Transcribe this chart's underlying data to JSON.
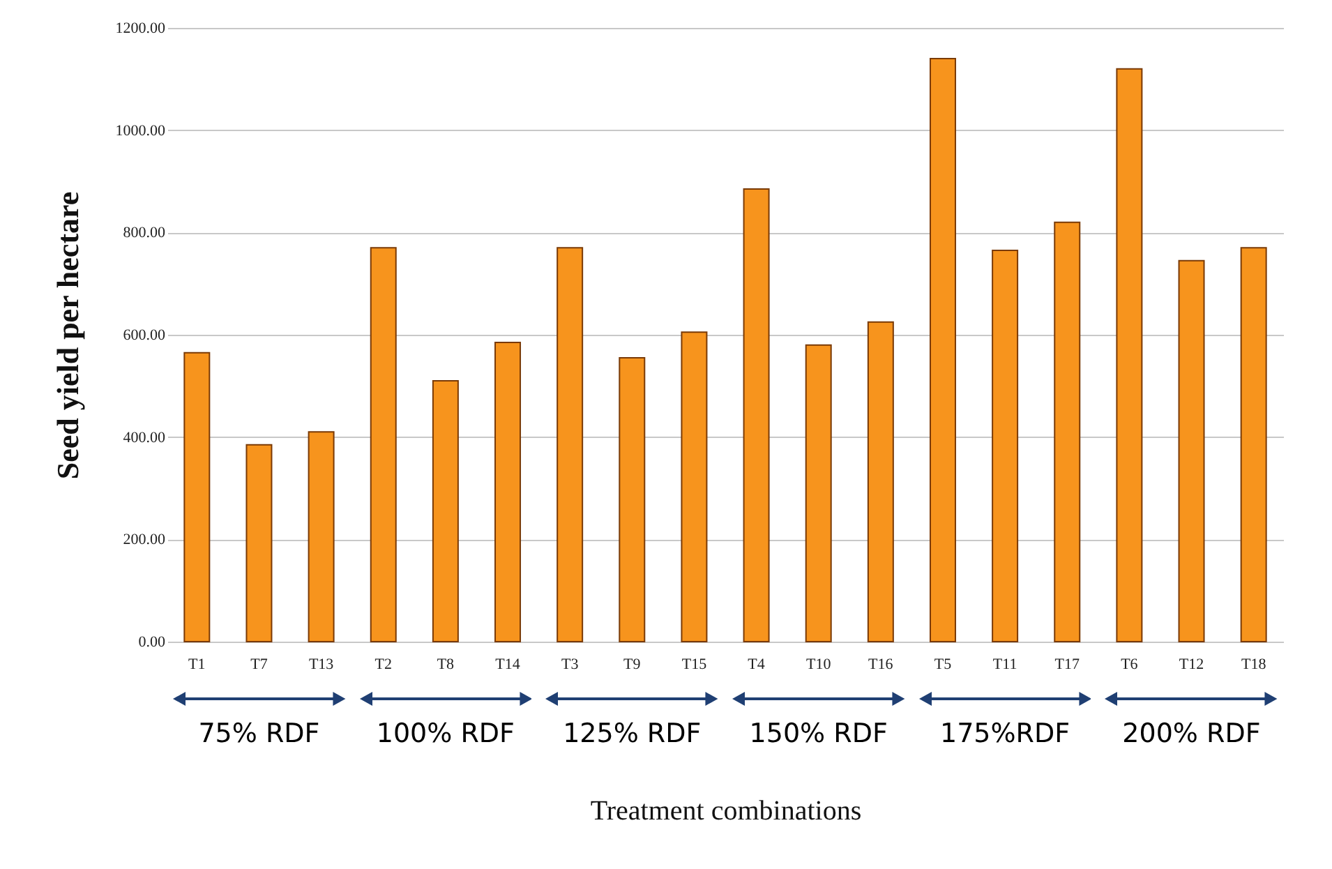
{
  "chart_data": {
    "type": "bar",
    "xlabel": "Treatment combinations",
    "ylabel": "Seed yield per hectare",
    "categories": [
      "T1",
      "T7",
      "T13",
      "T2",
      "T8",
      "T14",
      "T3",
      "T9",
      "T15",
      "T4",
      "T10",
      "T16",
      "T5",
      "T11",
      "T17",
      "T6",
      "T12",
      "T18"
    ],
    "values": [
      565,
      385,
      410,
      770,
      510,
      585,
      770,
      555,
      605,
      885,
      580,
      625,
      1140,
      765,
      820,
      1120,
      745,
      770
    ],
    "color": "#f7941d",
    "ylim": [
      0,
      1200
    ],
    "yticks": [
      {
        "value": 0,
        "label": "0.00"
      },
      {
        "value": 200,
        "label": "200.00"
      },
      {
        "value": 400,
        "label": "400.00"
      },
      {
        "value": 600,
        "label": "600.00"
      },
      {
        "value": 800,
        "label": "800.00"
      },
      {
        "value": 1000,
        "label": "1000.00"
      },
      {
        "value": 1200,
        "label": "1200.00"
      }
    ],
    "grid": "y",
    "annotations": [
      "75% RDF",
      "100% RDF",
      "125% RDF",
      "150% RDF",
      "175%RDF",
      "200% RDF"
    ]
  }
}
